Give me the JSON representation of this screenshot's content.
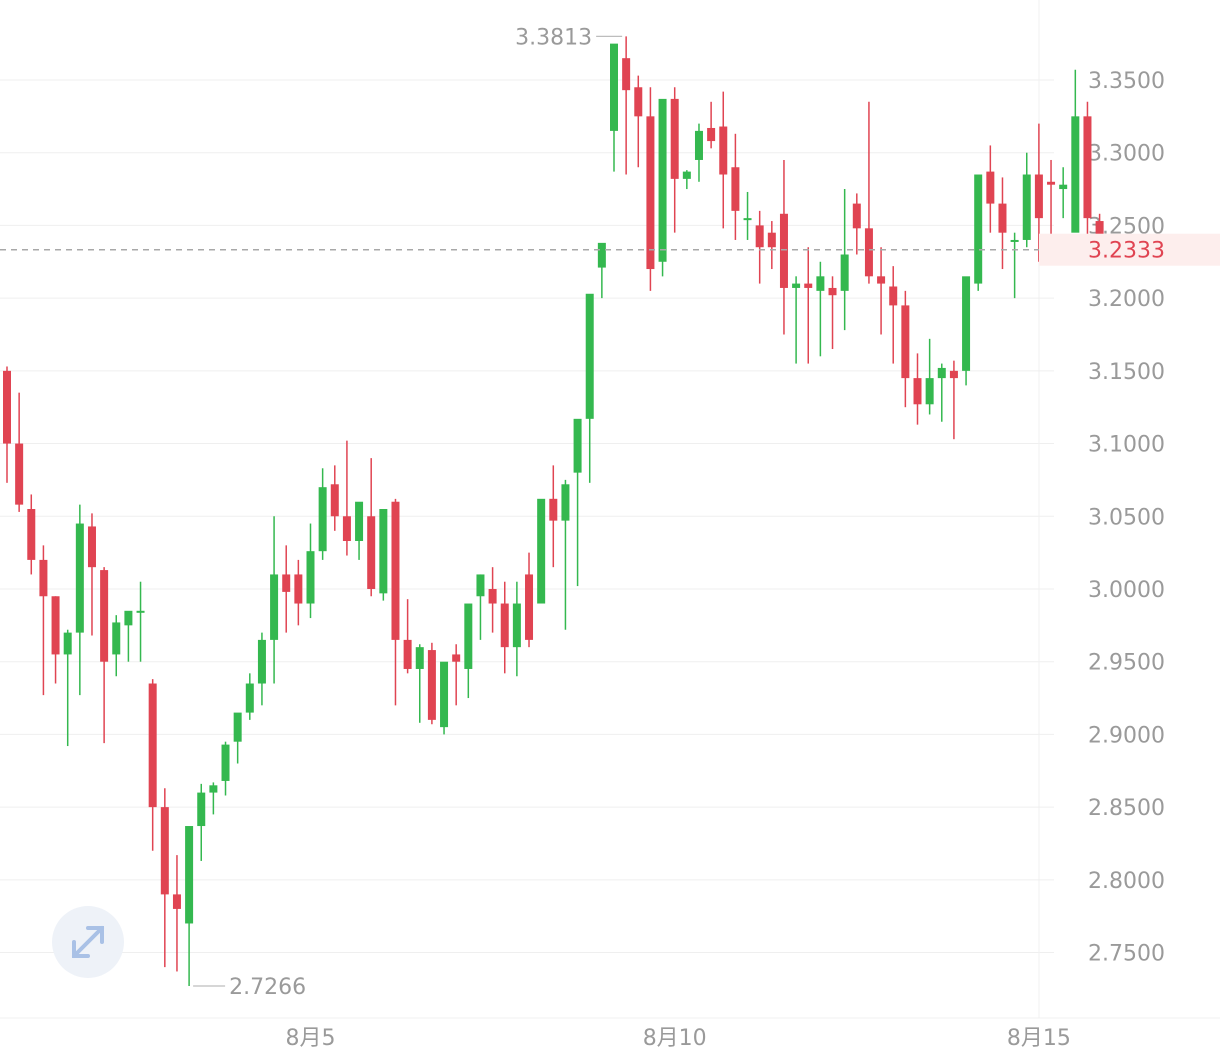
{
  "chart_data": {
    "type": "candlestick",
    "y_ticks": [
      "3.3500",
      "3.3000",
      "3.2500",
      "3.2000",
      "3.1500",
      "3.1000",
      "3.0500",
      "3.0000",
      "2.9500",
      "2.9000",
      "2.8500",
      "2.8000",
      "2.7500"
    ],
    "x_ticks": [
      "8月5",
      "8月10",
      "8月15"
    ],
    "ylim": [
      2.705,
      3.405
    ],
    "current_price": "3.2333",
    "max_label": "3.3813",
    "min_label": "2.7266",
    "grid": true,
    "colors": {
      "up": "#34b84f",
      "down": "#e04452",
      "current": "#e04452",
      "current_bg": "#fdeeed",
      "grid": "#efefef",
      "axis_text": "#9a9a9a"
    },
    "candles": [
      [
        3.15,
        3.153,
        3.1,
        3.073
      ],
      [
        3.1,
        3.135,
        3.058,
        3.053
      ],
      [
        3.055,
        3.065,
        3.02,
        3.01
      ],
      [
        3.02,
        3.03,
        2.995,
        2.927
      ],
      [
        2.995,
        2.995,
        2.955,
        2.935
      ],
      [
        2.955,
        2.972,
        2.97,
        2.892
      ],
      [
        2.97,
        3.058,
        3.045,
        2.927
      ],
      [
        3.043,
        3.052,
        3.015,
        2.968
      ],
      [
        3.013,
        3.015,
        2.95,
        2.894
      ],
      [
        2.955,
        2.982,
        2.977,
        2.94
      ],
      [
        2.975,
        2.982,
        2.985,
        2.95
      ],
      [
        2.985,
        3.005,
        2.985,
        2.95
      ],
      [
        2.935,
        2.938,
        2.85,
        2.82
      ],
      [
        2.85,
        2.863,
        2.79,
        2.74
      ],
      [
        2.79,
        2.817,
        2.78,
        2.737
      ],
      [
        2.77,
        2.78,
        2.837,
        2.727
      ],
      [
        2.837,
        2.866,
        2.86,
        2.813
      ],
      [
        2.86,
        2.867,
        2.865,
        2.845
      ],
      [
        2.868,
        2.895,
        2.893,
        2.858
      ],
      [
        2.895,
        2.911,
        2.915,
        2.88
      ],
      [
        2.915,
        2.942,
        2.935,
        2.91
      ],
      [
        2.935,
        2.97,
        2.965,
        2.92
      ],
      [
        2.965,
        3.05,
        3.01,
        2.935
      ],
      [
        3.01,
        3.03,
        2.998,
        2.97
      ],
      [
        3.01,
        3.02,
        2.99,
        2.975
      ],
      [
        2.99,
        3.045,
        3.026,
        2.98
      ],
      [
        3.026,
        3.083,
        3.07,
        3.02
      ],
      [
        3.072,
        3.085,
        3.05,
        3.04
      ],
      [
        3.05,
        3.102,
        3.033,
        3.023
      ],
      [
        3.033,
        3.048,
        3.06,
        3.02
      ],
      [
        3.05,
        3.09,
        3.0,
        2.995
      ],
      [
        2.997,
        3.025,
        3.055,
        2.992
      ],
      [
        3.06,
        3.062,
        2.965,
        2.92
      ],
      [
        2.965,
        2.993,
        2.945,
        2.942
      ],
      [
        2.945,
        2.962,
        2.96,
        2.908
      ],
      [
        2.958,
        2.963,
        2.91,
        2.907
      ],
      [
        2.905,
        2.932,
        2.95,
        2.9
      ],
      [
        2.955,
        2.962,
        2.95,
        2.92
      ],
      [
        2.945,
        2.962,
        2.99,
        2.925
      ],
      [
        2.995,
        3.01,
        3.01,
        2.965
      ],
      [
        3.0,
        3.015,
        2.99,
        2.97
      ],
      [
        2.99,
        3.005,
        2.96,
        2.942
      ],
      [
        2.96,
        3.005,
        2.99,
        2.94
      ],
      [
        3.01,
        3.025,
        2.965,
        2.96
      ],
      [
        2.99,
        3.052,
        3.062,
        3.01
      ],
      [
        3.062,
        3.085,
        3.047,
        3.015
      ],
      [
        3.047,
        3.075,
        3.072,
        2.972
      ],
      [
        3.08,
        3.089,
        3.117,
        3.002
      ],
      [
        3.117,
        3.122,
        3.203,
        3.073
      ],
      [
        3.221,
        3.237,
        3.238,
        3.2
      ],
      [
        3.315,
        3.353,
        3.375,
        3.287
      ],
      [
        3.365,
        3.38,
        3.343,
        3.285
      ],
      [
        3.345,
        3.353,
        3.325,
        3.29
      ],
      [
        3.325,
        3.345,
        3.22,
        3.205
      ],
      [
        3.225,
        3.333,
        3.337,
        3.215
      ],
      [
        3.337,
        3.345,
        3.282,
        3.245
      ],
      [
        3.282,
        3.288,
        3.287,
        3.275
      ],
      [
        3.295,
        3.32,
        3.315,
        3.28
      ],
      [
        3.317,
        3.335,
        3.308,
        3.303
      ],
      [
        3.318,
        3.342,
        3.285,
        3.248
      ],
      [
        3.29,
        3.313,
        3.26,
        3.24
      ],
      [
        3.255,
        3.273,
        3.255,
        3.24
      ],
      [
        3.25,
        3.26,
        3.235,
        3.21
      ],
      [
        3.245,
        3.253,
        3.235,
        3.22
      ],
      [
        3.258,
        3.295,
        3.207,
        3.175
      ],
      [
        3.207,
        3.215,
        3.21,
        3.155
      ],
      [
        3.21,
        3.235,
        3.207,
        3.155
      ],
      [
        3.205,
        3.225,
        3.215,
        3.16
      ],
      [
        3.207,
        3.215,
        3.202,
        3.165
      ],
      [
        3.205,
        3.275,
        3.23,
        3.178
      ],
      [
        3.265,
        3.272,
        3.248,
        3.23
      ],
      [
        3.248,
        3.335,
        3.215,
        3.21
      ],
      [
        3.215,
        3.235,
        3.21,
        3.175
      ],
      [
        3.208,
        3.222,
        3.195,
        3.155
      ],
      [
        3.195,
        3.205,
        3.145,
        3.125
      ],
      [
        3.145,
        3.162,
        3.127,
        3.113
      ],
      [
        3.127,
        3.172,
        3.145,
        3.12
      ],
      [
        3.145,
        3.155,
        3.152,
        3.115
      ],
      [
        3.15,
        3.157,
        3.145,
        3.103
      ],
      [
        3.15,
        3.168,
        3.215,
        3.14
      ],
      [
        3.21,
        3.212,
        3.285,
        3.205
      ],
      [
        3.287,
        3.305,
        3.265,
        3.245
      ],
      [
        3.265,
        3.283,
        3.245,
        3.22
      ],
      [
        3.24,
        3.245,
        3.24,
        3.2
      ],
      [
        3.24,
        3.3,
        3.285,
        3.235
      ],
      [
        3.285,
        3.32,
        3.255,
        3.225
      ],
      [
        3.28,
        3.295,
        3.278,
        3.24
      ],
      [
        3.275,
        3.29,
        3.278,
        3.255
      ],
      [
        3.245,
        3.357,
        3.325,
        3.25
      ],
      [
        3.325,
        3.335,
        3.255,
        3.238
      ],
      [
        3.253,
        3.258,
        3.233,
        3.225
      ]
    ]
  },
  "ui": {
    "expand_icon": "expand-arrows-icon"
  }
}
